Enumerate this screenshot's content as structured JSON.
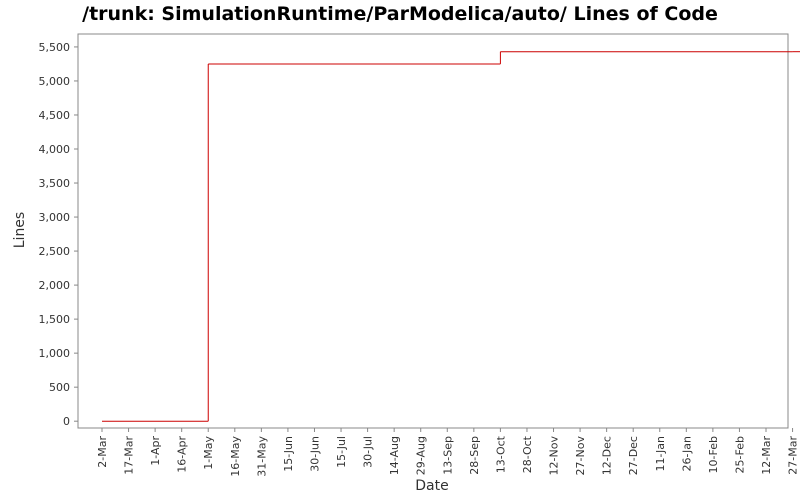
{
  "chart_data": {
    "type": "step",
    "title": "/trunk: SimulationRuntime/ParModelica/auto/ Lines of Code",
    "x_label": "Date",
    "y_label": "Lines",
    "categories": [
      "2-Mar",
      "17-Mar",
      "1-Apr",
      "16-Apr",
      "1-May",
      "16-May",
      "31-May",
      "15-Jun",
      "30-Jun",
      "15-Jul",
      "30-Jul",
      "14-Aug",
      "29-Aug",
      "13-Sep",
      "28-Sep",
      "13-Oct",
      "28-Oct",
      "12-Nov",
      "27-Nov",
      "12-Dec",
      "27-Dec",
      "11-Jan",
      "26-Jan",
      "10-Feb",
      "25-Feb",
      "12-Mar",
      "27-Mar"
    ],
    "series": [
      {
        "name": "Lines",
        "color": "#cc0000",
        "x": [
          "2-Mar",
          "1-May",
          "13-Oct",
          "27-Mar"
        ],
        "values": [
          0,
          5250,
          5430,
          5430
        ]
      }
    ],
    "ylim": [
      -100,
      5690
    ],
    "yticks": [
      0,
      500,
      {
        "value": 1000,
        "label": "1,000"
      },
      {
        "value": 1500,
        "label": "1,500"
      },
      {
        "value": 2000,
        "label": "2,000"
      },
      {
        "value": 2500,
        "label": "2,500"
      },
      {
        "value": 3000,
        "label": "3,000"
      },
      {
        "value": 3500,
        "label": "3,500"
      },
      {
        "value": 4000,
        "label": "4,000"
      },
      {
        "value": 4500,
        "label": "4,500"
      },
      {
        "value": 5000,
        "label": "5,000"
      },
      {
        "value": 5500,
        "label": "5,500"
      }
    ],
    "grid": false
  }
}
